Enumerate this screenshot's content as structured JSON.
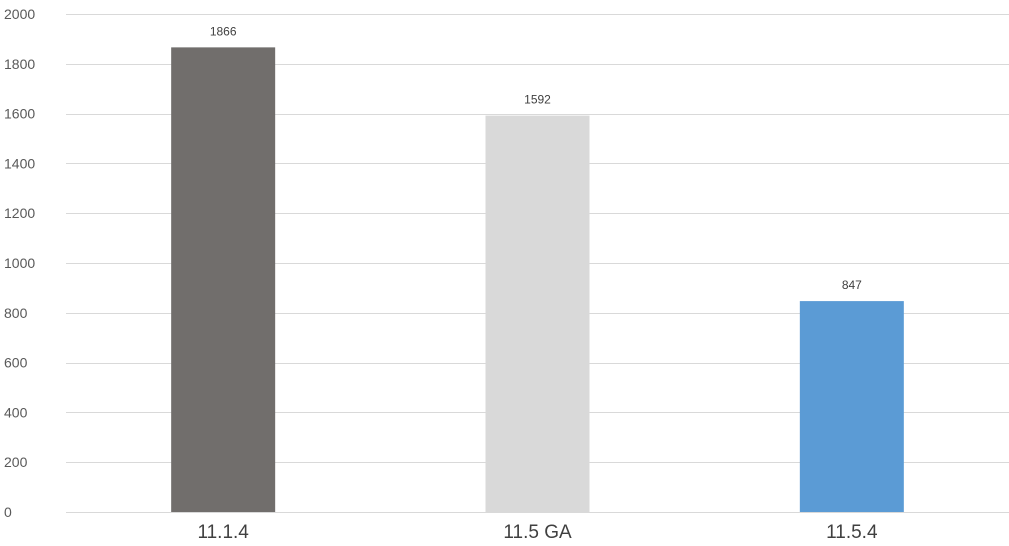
{
  "chart_data": {
    "type": "bar",
    "title": "",
    "xlabel": "",
    "ylabel": "",
    "categories": [
      "11.1.4",
      "11.5 GA",
      "11.5.4"
    ],
    "values": [
      1866,
      1592,
      847
    ],
    "data_labels": [
      "1866",
      "1592",
      "847"
    ],
    "bar_colors": [
      "#716e6c",
      "#d9d9d9",
      "#5b9bd5"
    ],
    "ylim": [
      0,
      2000
    ],
    "yticks": [
      0,
      200,
      400,
      600,
      800,
      1000,
      1200,
      1400,
      1600,
      1800,
      2000
    ],
    "ytick_labels": [
      "0",
      "200",
      "400",
      "600",
      "800",
      "1000",
      "1200",
      "1400",
      "1600",
      "1800",
      "2000"
    ],
    "grid": true,
    "legend": "none"
  }
}
